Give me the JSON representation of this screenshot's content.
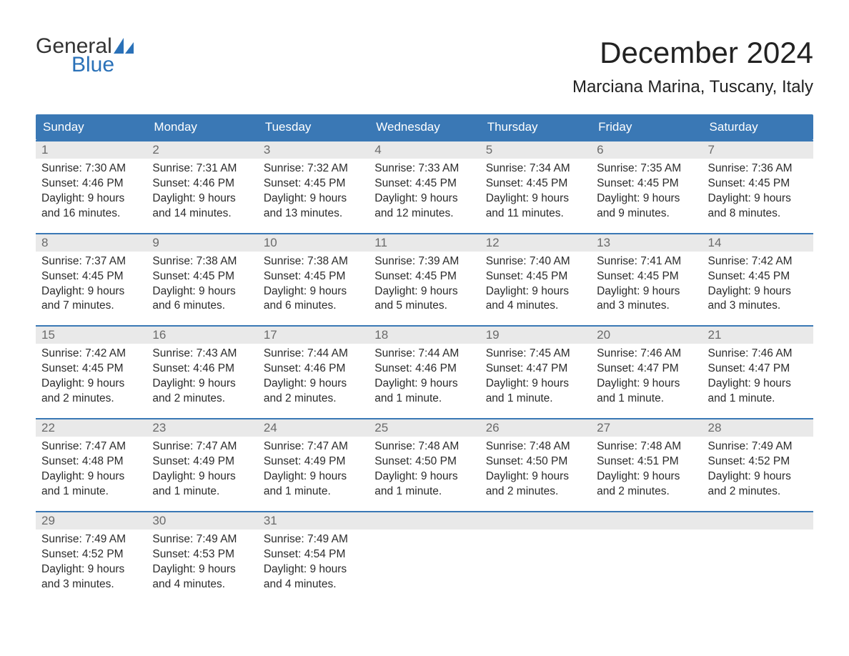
{
  "logo": {
    "text1": "General",
    "text2": "Blue",
    "icon_color": "#2a71b8",
    "text1_color": "#333333",
    "text2_color": "#2a71b8"
  },
  "month_title": "December 2024",
  "location": "Marciana Marina, Tuscany, Italy",
  "header_bg": "#3a78b5",
  "header_fg": "#ffffff",
  "daynum_bg": "#e9e9e9",
  "daynum_fg": "#6a6a6a",
  "border_color": "#3a78b5",
  "weekdays": [
    "Sunday",
    "Monday",
    "Tuesday",
    "Wednesday",
    "Thursday",
    "Friday",
    "Saturday"
  ],
  "weeks": [
    [
      {
        "n": "1",
        "sunrise": "Sunrise: 7:30 AM",
        "sunset": "Sunset: 4:46 PM",
        "d1": "Daylight: 9 hours",
        "d2": "and 16 minutes."
      },
      {
        "n": "2",
        "sunrise": "Sunrise: 7:31 AM",
        "sunset": "Sunset: 4:46 PM",
        "d1": "Daylight: 9 hours",
        "d2": "and 14 minutes."
      },
      {
        "n": "3",
        "sunrise": "Sunrise: 7:32 AM",
        "sunset": "Sunset: 4:45 PM",
        "d1": "Daylight: 9 hours",
        "d2": "and 13 minutes."
      },
      {
        "n": "4",
        "sunrise": "Sunrise: 7:33 AM",
        "sunset": "Sunset: 4:45 PM",
        "d1": "Daylight: 9 hours",
        "d2": "and 12 minutes."
      },
      {
        "n": "5",
        "sunrise": "Sunrise: 7:34 AM",
        "sunset": "Sunset: 4:45 PM",
        "d1": "Daylight: 9 hours",
        "d2": "and 11 minutes."
      },
      {
        "n": "6",
        "sunrise": "Sunrise: 7:35 AM",
        "sunset": "Sunset: 4:45 PM",
        "d1": "Daylight: 9 hours",
        "d2": "and 9 minutes."
      },
      {
        "n": "7",
        "sunrise": "Sunrise: 7:36 AM",
        "sunset": "Sunset: 4:45 PM",
        "d1": "Daylight: 9 hours",
        "d2": "and 8 minutes."
      }
    ],
    [
      {
        "n": "8",
        "sunrise": "Sunrise: 7:37 AM",
        "sunset": "Sunset: 4:45 PM",
        "d1": "Daylight: 9 hours",
        "d2": "and 7 minutes."
      },
      {
        "n": "9",
        "sunrise": "Sunrise: 7:38 AM",
        "sunset": "Sunset: 4:45 PM",
        "d1": "Daylight: 9 hours",
        "d2": "and 6 minutes."
      },
      {
        "n": "10",
        "sunrise": "Sunrise: 7:38 AM",
        "sunset": "Sunset: 4:45 PM",
        "d1": "Daylight: 9 hours",
        "d2": "and 6 minutes."
      },
      {
        "n": "11",
        "sunrise": "Sunrise: 7:39 AM",
        "sunset": "Sunset: 4:45 PM",
        "d1": "Daylight: 9 hours",
        "d2": "and 5 minutes."
      },
      {
        "n": "12",
        "sunrise": "Sunrise: 7:40 AM",
        "sunset": "Sunset: 4:45 PM",
        "d1": "Daylight: 9 hours",
        "d2": "and 4 minutes."
      },
      {
        "n": "13",
        "sunrise": "Sunrise: 7:41 AM",
        "sunset": "Sunset: 4:45 PM",
        "d1": "Daylight: 9 hours",
        "d2": "and 3 minutes."
      },
      {
        "n": "14",
        "sunrise": "Sunrise: 7:42 AM",
        "sunset": "Sunset: 4:45 PM",
        "d1": "Daylight: 9 hours",
        "d2": "and 3 minutes."
      }
    ],
    [
      {
        "n": "15",
        "sunrise": "Sunrise: 7:42 AM",
        "sunset": "Sunset: 4:45 PM",
        "d1": "Daylight: 9 hours",
        "d2": "and 2 minutes."
      },
      {
        "n": "16",
        "sunrise": "Sunrise: 7:43 AM",
        "sunset": "Sunset: 4:46 PM",
        "d1": "Daylight: 9 hours",
        "d2": "and 2 minutes."
      },
      {
        "n": "17",
        "sunrise": "Sunrise: 7:44 AM",
        "sunset": "Sunset: 4:46 PM",
        "d1": "Daylight: 9 hours",
        "d2": "and 2 minutes."
      },
      {
        "n": "18",
        "sunrise": "Sunrise: 7:44 AM",
        "sunset": "Sunset: 4:46 PM",
        "d1": "Daylight: 9 hours",
        "d2": "and 1 minute."
      },
      {
        "n": "19",
        "sunrise": "Sunrise: 7:45 AM",
        "sunset": "Sunset: 4:47 PM",
        "d1": "Daylight: 9 hours",
        "d2": "and 1 minute."
      },
      {
        "n": "20",
        "sunrise": "Sunrise: 7:46 AM",
        "sunset": "Sunset: 4:47 PM",
        "d1": "Daylight: 9 hours",
        "d2": "and 1 minute."
      },
      {
        "n": "21",
        "sunrise": "Sunrise: 7:46 AM",
        "sunset": "Sunset: 4:47 PM",
        "d1": "Daylight: 9 hours",
        "d2": "and 1 minute."
      }
    ],
    [
      {
        "n": "22",
        "sunrise": "Sunrise: 7:47 AM",
        "sunset": "Sunset: 4:48 PM",
        "d1": "Daylight: 9 hours",
        "d2": "and 1 minute."
      },
      {
        "n": "23",
        "sunrise": "Sunrise: 7:47 AM",
        "sunset": "Sunset: 4:49 PM",
        "d1": "Daylight: 9 hours",
        "d2": "and 1 minute."
      },
      {
        "n": "24",
        "sunrise": "Sunrise: 7:47 AM",
        "sunset": "Sunset: 4:49 PM",
        "d1": "Daylight: 9 hours",
        "d2": "and 1 minute."
      },
      {
        "n": "25",
        "sunrise": "Sunrise: 7:48 AM",
        "sunset": "Sunset: 4:50 PM",
        "d1": "Daylight: 9 hours",
        "d2": "and 1 minute."
      },
      {
        "n": "26",
        "sunrise": "Sunrise: 7:48 AM",
        "sunset": "Sunset: 4:50 PM",
        "d1": "Daylight: 9 hours",
        "d2": "and 2 minutes."
      },
      {
        "n": "27",
        "sunrise": "Sunrise: 7:48 AM",
        "sunset": "Sunset: 4:51 PM",
        "d1": "Daylight: 9 hours",
        "d2": "and 2 minutes."
      },
      {
        "n": "28",
        "sunrise": "Sunrise: 7:49 AM",
        "sunset": "Sunset: 4:52 PM",
        "d1": "Daylight: 9 hours",
        "d2": "and 2 minutes."
      }
    ],
    [
      {
        "n": "29",
        "sunrise": "Sunrise: 7:49 AM",
        "sunset": "Sunset: 4:52 PM",
        "d1": "Daylight: 9 hours",
        "d2": "and 3 minutes."
      },
      {
        "n": "30",
        "sunrise": "Sunrise: 7:49 AM",
        "sunset": "Sunset: 4:53 PM",
        "d1": "Daylight: 9 hours",
        "d2": "and 4 minutes."
      },
      {
        "n": "31",
        "sunrise": "Sunrise: 7:49 AM",
        "sunset": "Sunset: 4:54 PM",
        "d1": "Daylight: 9 hours",
        "d2": "and 4 minutes."
      },
      {
        "empty": true
      },
      {
        "empty": true
      },
      {
        "empty": true
      },
      {
        "empty": true
      }
    ]
  ]
}
